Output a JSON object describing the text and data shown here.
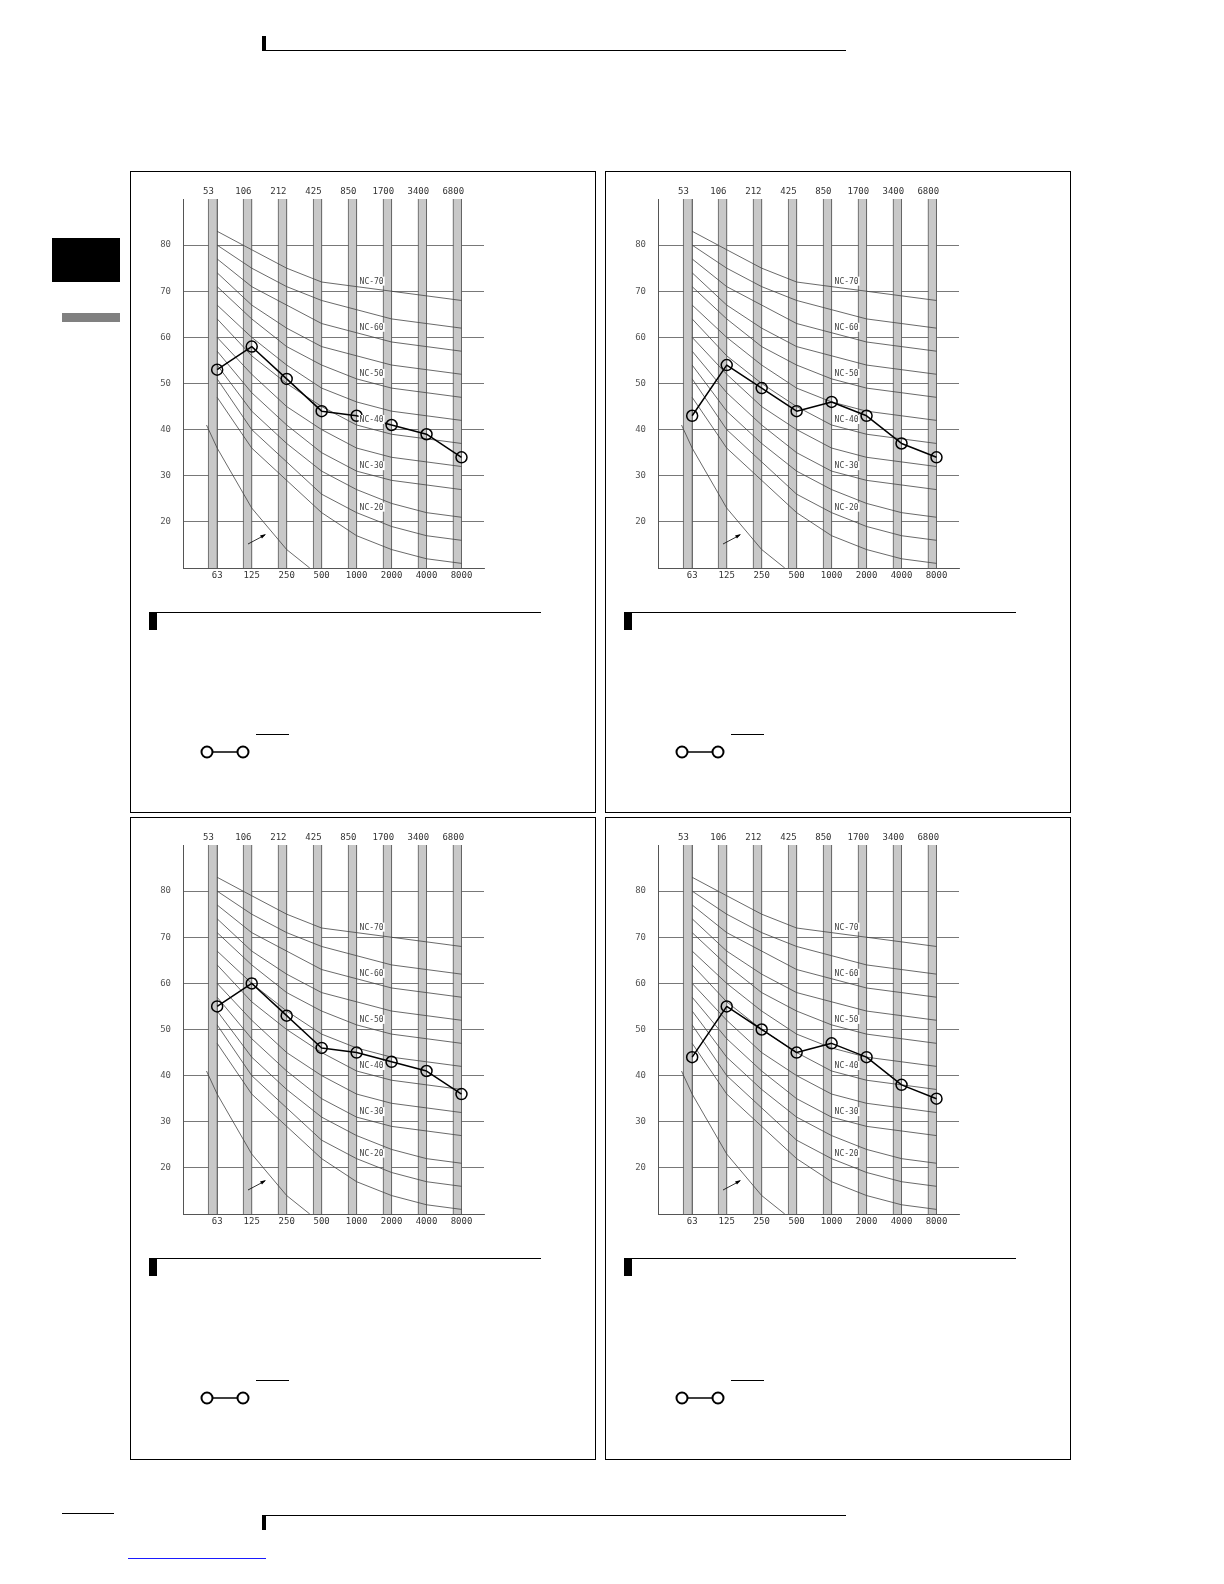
{
  "chart_data": [
    {
      "type": "line",
      "x": [
        63,
        125,
        250,
        500,
        1000,
        2000,
        4000,
        8000
      ],
      "xlim": [
        32,
        12500
      ],
      "xticks": [
        63,
        125,
        250,
        500,
        1000,
        2000,
        4000,
        8000
      ],
      "log": "x",
      "ylim": [
        10,
        90
      ],
      "yticks": [
        20,
        30,
        40,
        50,
        60,
        70,
        80
      ],
      "grid": true,
      "legend": false,
      "bands": [
        {
          "axis": "x",
          "from": 53,
          "to": 63,
          "label": "53",
          "color": "#c8c8c8"
        },
        {
          "axis": "x",
          "from": 106,
          "to": 125,
          "label": "106",
          "color": "#c8c8c8"
        },
        {
          "axis": "x",
          "from": 212,
          "to": 250,
          "label": "212",
          "color": "#c8c8c8"
        },
        {
          "axis": "x",
          "from": 425,
          "to": 500,
          "label": "425",
          "color": "#c8c8c8"
        },
        {
          "axis": "x",
          "from": 850,
          "to": 1000,
          "label": "850",
          "color": "#c8c8c8"
        },
        {
          "axis": "x",
          "from": 1700,
          "to": 2000,
          "label": "1700",
          "color": "#c8c8c8"
        },
        {
          "axis": "x",
          "from": 3400,
          "to": 4000,
          "label": "3400",
          "color": "#c8c8c8"
        },
        {
          "axis": "x",
          "from": 6800,
          "to": 8000,
          "label": "6800",
          "color": "#c8c8c8"
        }
      ],
      "series": [
        {
          "color": "#000000",
          "marker": "circle",
          "values": [
            53,
            58,
            51,
            44,
            43,
            41,
            39,
            34
          ]
        },
        {
          "name": "NC-70",
          "color": "#444444",
          "marker": "none",
          "values": [
            83,
            79,
            75,
            72,
            71,
            70,
            69,
            68
          ]
        },
        {
          "color": "#444444",
          "marker": "none",
          "values": [
            80,
            75,
            71,
            68,
            66,
            64,
            63,
            62
          ]
        },
        {
          "name": "NC-60",
          "color": "#444444",
          "marker": "none",
          "values": [
            77,
            71,
            67,
            63,
            61,
            59,
            58,
            57
          ]
        },
        {
          "color": "#444444",
          "marker": "none",
          "values": [
            74,
            67,
            62,
            58,
            56,
            54,
            53,
            52
          ]
        },
        {
          "name": "NC-50",
          "color": "#444444",
          "marker": "none",
          "values": [
            71,
            64,
            58,
            54,
            51,
            49,
            48,
            47
          ]
        },
        {
          "color": "#444444",
          "marker": "none",
          "values": [
            67,
            60,
            54,
            49,
            46,
            44,
            43,
            42
          ]
        },
        {
          "name": "NC-40",
          "color": "#444444",
          "marker": "none",
          "values": [
            64,
            56,
            50,
            45,
            41,
            39,
            38,
            37
          ]
        },
        {
          "color": "#444444",
          "marker": "none",
          "values": [
            60,
            52,
            45,
            40,
            36,
            34,
            33,
            32
          ]
        },
        {
          "name": "NC-30",
          "color": "#444444",
          "marker": "none",
          "values": [
            57,
            48,
            41,
            35,
            31,
            29,
            28,
            27
          ]
        },
        {
          "color": "#444444",
          "marker": "none",
          "values": [
            54,
            44,
            37,
            31,
            27,
            24,
            22,
            21
          ]
        },
        {
          "name": "NC-20",
          "color": "#444444",
          "marker": "none",
          "values": [
            51,
            40,
            33,
            26,
            22,
            19,
            17,
            16
          ]
        },
        {
          "color": "#444444",
          "marker": "none",
          "values": [
            47,
            36,
            29,
            22,
            17,
            14,
            12,
            11
          ]
        },
        {
          "color": "#444444",
          "marker": "none",
          "x": [
            51,
            63,
            125,
            250,
            395
          ],
          "values": [
            41,
            36,
            23,
            14,
            10
          ]
        }
      ]
    },
    {
      "type": "line",
      "x": [
        63,
        125,
        250,
        500,
        1000,
        2000,
        4000,
        8000
      ],
      "xlim": [
        32,
        12500
      ],
      "xticks": [
        63,
        125,
        250,
        500,
        1000,
        2000,
        4000,
        8000
      ],
      "log": "x",
      "ylim": [
        10,
        90
      ],
      "yticks": [
        20,
        30,
        40,
        50,
        60,
        70,
        80
      ],
      "grid": true,
      "legend": false,
      "bands": [
        {
          "axis": "x",
          "from": 53,
          "to": 63,
          "label": "53",
          "color": "#c8c8c8"
        },
        {
          "axis": "x",
          "from": 106,
          "to": 125,
          "label": "106",
          "color": "#c8c8c8"
        },
        {
          "axis": "x",
          "from": 212,
          "to": 250,
          "label": "212",
          "color": "#c8c8c8"
        },
        {
          "axis": "x",
          "from": 425,
          "to": 500,
          "label": "425",
          "color": "#c8c8c8"
        },
        {
          "axis": "x",
          "from": 850,
          "to": 1000,
          "label": "850",
          "color": "#c8c8c8"
        },
        {
          "axis": "x",
          "from": 1700,
          "to": 2000,
          "label": "1700",
          "color": "#c8c8c8"
        },
        {
          "axis": "x",
          "from": 3400,
          "to": 4000,
          "label": "3400",
          "color": "#c8c8c8"
        },
        {
          "axis": "x",
          "from": 6800,
          "to": 8000,
          "label": "6800",
          "color": "#c8c8c8"
        }
      ],
      "series": [
        {
          "color": "#000000",
          "marker": "circle",
          "values": [
            43,
            54,
            49,
            44,
            46,
            43,
            37,
            34
          ]
        },
        {
          "name": "NC-70",
          "color": "#444444",
          "marker": "none",
          "values": [
            83,
            79,
            75,
            72,
            71,
            70,
            69,
            68
          ]
        },
        {
          "color": "#444444",
          "marker": "none",
          "values": [
            80,
            75,
            71,
            68,
            66,
            64,
            63,
            62
          ]
        },
        {
          "name": "NC-60",
          "color": "#444444",
          "marker": "none",
          "values": [
            77,
            71,
            67,
            63,
            61,
            59,
            58,
            57
          ]
        },
        {
          "color": "#444444",
          "marker": "none",
          "values": [
            74,
            67,
            62,
            58,
            56,
            54,
            53,
            52
          ]
        },
        {
          "name": "NC-50",
          "color": "#444444",
          "marker": "none",
          "values": [
            71,
            64,
            58,
            54,
            51,
            49,
            48,
            47
          ]
        },
        {
          "color": "#444444",
          "marker": "none",
          "values": [
            67,
            60,
            54,
            49,
            46,
            44,
            43,
            42
          ]
        },
        {
          "name": "NC-40",
          "color": "#444444",
          "marker": "none",
          "values": [
            64,
            56,
            50,
            45,
            41,
            39,
            38,
            37
          ]
        },
        {
          "color": "#444444",
          "marker": "none",
          "values": [
            60,
            52,
            45,
            40,
            36,
            34,
            33,
            32
          ]
        },
        {
          "name": "NC-30",
          "color": "#444444",
          "marker": "none",
          "values": [
            57,
            48,
            41,
            35,
            31,
            29,
            28,
            27
          ]
        },
        {
          "color": "#444444",
          "marker": "none",
          "values": [
            54,
            44,
            37,
            31,
            27,
            24,
            22,
            21
          ]
        },
        {
          "name": "NC-20",
          "color": "#444444",
          "marker": "none",
          "values": [
            51,
            40,
            33,
            26,
            22,
            19,
            17,
            16
          ]
        },
        {
          "color": "#444444",
          "marker": "none",
          "values": [
            47,
            36,
            29,
            22,
            17,
            14,
            12,
            11
          ]
        },
        {
          "color": "#444444",
          "marker": "none",
          "x": [
            51,
            63,
            125,
            250,
            395
          ],
          "values": [
            41,
            36,
            23,
            14,
            10
          ]
        }
      ]
    },
    {
      "type": "line",
      "x": [
        63,
        125,
        250,
        500,
        1000,
        2000,
        4000,
        8000
      ],
      "xlim": [
        32,
        12500
      ],
      "xticks": [
        63,
        125,
        250,
        500,
        1000,
        2000,
        4000,
        8000
      ],
      "log": "x",
      "ylim": [
        10,
        90
      ],
      "yticks": [
        20,
        30,
        40,
        50,
        60,
        70,
        80
      ],
      "grid": true,
      "legend": false,
      "bands": [
        {
          "axis": "x",
          "from": 53,
          "to": 63,
          "label": "53",
          "color": "#c8c8c8"
        },
        {
          "axis": "x",
          "from": 106,
          "to": 125,
          "label": "106",
          "color": "#c8c8c8"
        },
        {
          "axis": "x",
          "from": 212,
          "to": 250,
          "label": "212",
          "color": "#c8c8c8"
        },
        {
          "axis": "x",
          "from": 425,
          "to": 500,
          "label": "425",
          "color": "#c8c8c8"
        },
        {
          "axis": "x",
          "from": 850,
          "to": 1000,
          "label": "850",
          "color": "#c8c8c8"
        },
        {
          "axis": "x",
          "from": 1700,
          "to": 2000,
          "label": "1700",
          "color": "#c8c8c8"
        },
        {
          "axis": "x",
          "from": 3400,
          "to": 4000,
          "label": "3400",
          "color": "#c8c8c8"
        },
        {
          "axis": "x",
          "from": 6800,
          "to": 8000,
          "label": "6800",
          "color": "#c8c8c8"
        }
      ],
      "series": [
        {
          "color": "#000000",
          "marker": "circle",
          "values": [
            55,
            60,
            53,
            46,
            45,
            43,
            41,
            36
          ]
        },
        {
          "name": "NC-70",
          "color": "#444444",
          "marker": "none",
          "values": [
            83,
            79,
            75,
            72,
            71,
            70,
            69,
            68
          ]
        },
        {
          "color": "#444444",
          "marker": "none",
          "values": [
            80,
            75,
            71,
            68,
            66,
            64,
            63,
            62
          ]
        },
        {
          "name": "NC-60",
          "color": "#444444",
          "marker": "none",
          "values": [
            77,
            71,
            67,
            63,
            61,
            59,
            58,
            57
          ]
        },
        {
          "color": "#444444",
          "marker": "none",
          "values": [
            74,
            67,
            62,
            58,
            56,
            54,
            53,
            52
          ]
        },
        {
          "name": "NC-50",
          "color": "#444444",
          "marker": "none",
          "values": [
            71,
            64,
            58,
            54,
            51,
            49,
            48,
            47
          ]
        },
        {
          "color": "#444444",
          "marker": "none",
          "values": [
            67,
            60,
            54,
            49,
            46,
            44,
            43,
            42
          ]
        },
        {
          "name": "NC-40",
          "color": "#444444",
          "marker": "none",
          "values": [
            64,
            56,
            50,
            45,
            41,
            39,
            38,
            37
          ]
        },
        {
          "color": "#444444",
          "marker": "none",
          "values": [
            60,
            52,
            45,
            40,
            36,
            34,
            33,
            32
          ]
        },
        {
          "name": "NC-30",
          "color": "#444444",
          "marker": "none",
          "values": [
            57,
            48,
            41,
            35,
            31,
            29,
            28,
            27
          ]
        },
        {
          "color": "#444444",
          "marker": "none",
          "values": [
            54,
            44,
            37,
            31,
            27,
            24,
            22,
            21
          ]
        },
        {
          "name": "NC-20",
          "color": "#444444",
          "marker": "none",
          "values": [
            51,
            40,
            33,
            26,
            22,
            19,
            17,
            16
          ]
        },
        {
          "color": "#444444",
          "marker": "none",
          "values": [
            47,
            36,
            29,
            22,
            17,
            14,
            12,
            11
          ]
        },
        {
          "color": "#444444",
          "marker": "none",
          "x": [
            51,
            63,
            125,
            250,
            395
          ],
          "values": [
            41,
            36,
            23,
            14,
            10
          ]
        }
      ]
    },
    {
      "type": "line",
      "x": [
        63,
        125,
        250,
        500,
        1000,
        2000,
        4000,
        8000
      ],
      "xlim": [
        32,
        12500
      ],
      "xticks": [
        63,
        125,
        250,
        500,
        1000,
        2000,
        4000,
        8000
      ],
      "log": "x",
      "ylim": [
        10,
        90
      ],
      "yticks": [
        20,
        30,
        40,
        50,
        60,
        70,
        80
      ],
      "grid": true,
      "legend": false,
      "bands": [
        {
          "axis": "x",
          "from": 53,
          "to": 63,
          "label": "53",
          "color": "#c8c8c8"
        },
        {
          "axis": "x",
          "from": 106,
          "to": 125,
          "label": "106",
          "color": "#c8c8c8"
        },
        {
          "axis": "x",
          "from": 212,
          "to": 250,
          "label": "212",
          "color": "#c8c8c8"
        },
        {
          "axis": "x",
          "from": 425,
          "to": 500,
          "label": "425",
          "color": "#c8c8c8"
        },
        {
          "axis": "x",
          "from": 850,
          "to": 1000,
          "label": "850",
          "color": "#c8c8c8"
        },
        {
          "axis": "x",
          "from": 1700,
          "to": 2000,
          "label": "1700",
          "color": "#c8c8c8"
        },
        {
          "axis": "x",
          "from": 3400,
          "to": 4000,
          "label": "3400",
          "color": "#c8c8c8"
        },
        {
          "axis": "x",
          "from": 6800,
          "to": 8000,
          "label": "6800",
          "color": "#c8c8c8"
        }
      ],
      "series": [
        {
          "color": "#000000",
          "marker": "circle",
          "values": [
            44,
            55,
            50,
            45,
            47,
            44,
            38,
            35
          ]
        },
        {
          "name": "NC-70",
          "color": "#444444",
          "marker": "none",
          "values": [
            83,
            79,
            75,
            72,
            71,
            70,
            69,
            68
          ]
        },
        {
          "color": "#444444",
          "marker": "none",
          "values": [
            80,
            75,
            71,
            68,
            66,
            64,
            63,
            62
          ]
        },
        {
          "name": "NC-60",
          "color": "#444444",
          "marker": "none",
          "values": [
            77,
            71,
            67,
            63,
            61,
            59,
            58,
            57
          ]
        },
        {
          "color": "#444444",
          "marker": "none",
          "values": [
            74,
            67,
            62,
            58,
            56,
            54,
            53,
            52
          ]
        },
        {
          "name": "NC-50",
          "color": "#444444",
          "marker": "none",
          "values": [
            71,
            64,
            58,
            54,
            51,
            49,
            48,
            47
          ]
        },
        {
          "color": "#444444",
          "marker": "none",
          "values": [
            67,
            60,
            54,
            49,
            46,
            44,
            43,
            42
          ]
        },
        {
          "name": "NC-40",
          "color": "#444444",
          "marker": "none",
          "values": [
            64,
            56,
            50,
            45,
            41,
            39,
            38,
            37
          ]
        },
        {
          "color": "#444444",
          "marker": "none",
          "values": [
            60,
            52,
            45,
            40,
            36,
            34,
            33,
            32
          ]
        },
        {
          "name": "NC-30",
          "color": "#444444",
          "marker": "none",
          "values": [
            57,
            48,
            41,
            35,
            31,
            29,
            28,
            27
          ]
        },
        {
          "color": "#444444",
          "marker": "none",
          "values": [
            54,
            44,
            37,
            31,
            27,
            24,
            22,
            21
          ]
        },
        {
          "name": "NC-20",
          "color": "#444444",
          "marker": "none",
          "values": [
            51,
            40,
            33,
            26,
            22,
            19,
            17,
            16
          ]
        },
        {
          "color": "#444444",
          "marker": "none",
          "values": [
            47,
            36,
            29,
            22,
            17,
            14,
            12,
            11
          ]
        },
        {
          "color": "#444444",
          "marker": "none",
          "x": [
            51,
            63,
            125,
            250,
            395
          ],
          "values": [
            41,
            36,
            23,
            14,
            10
          ]
        }
      ]
    }
  ]
}
